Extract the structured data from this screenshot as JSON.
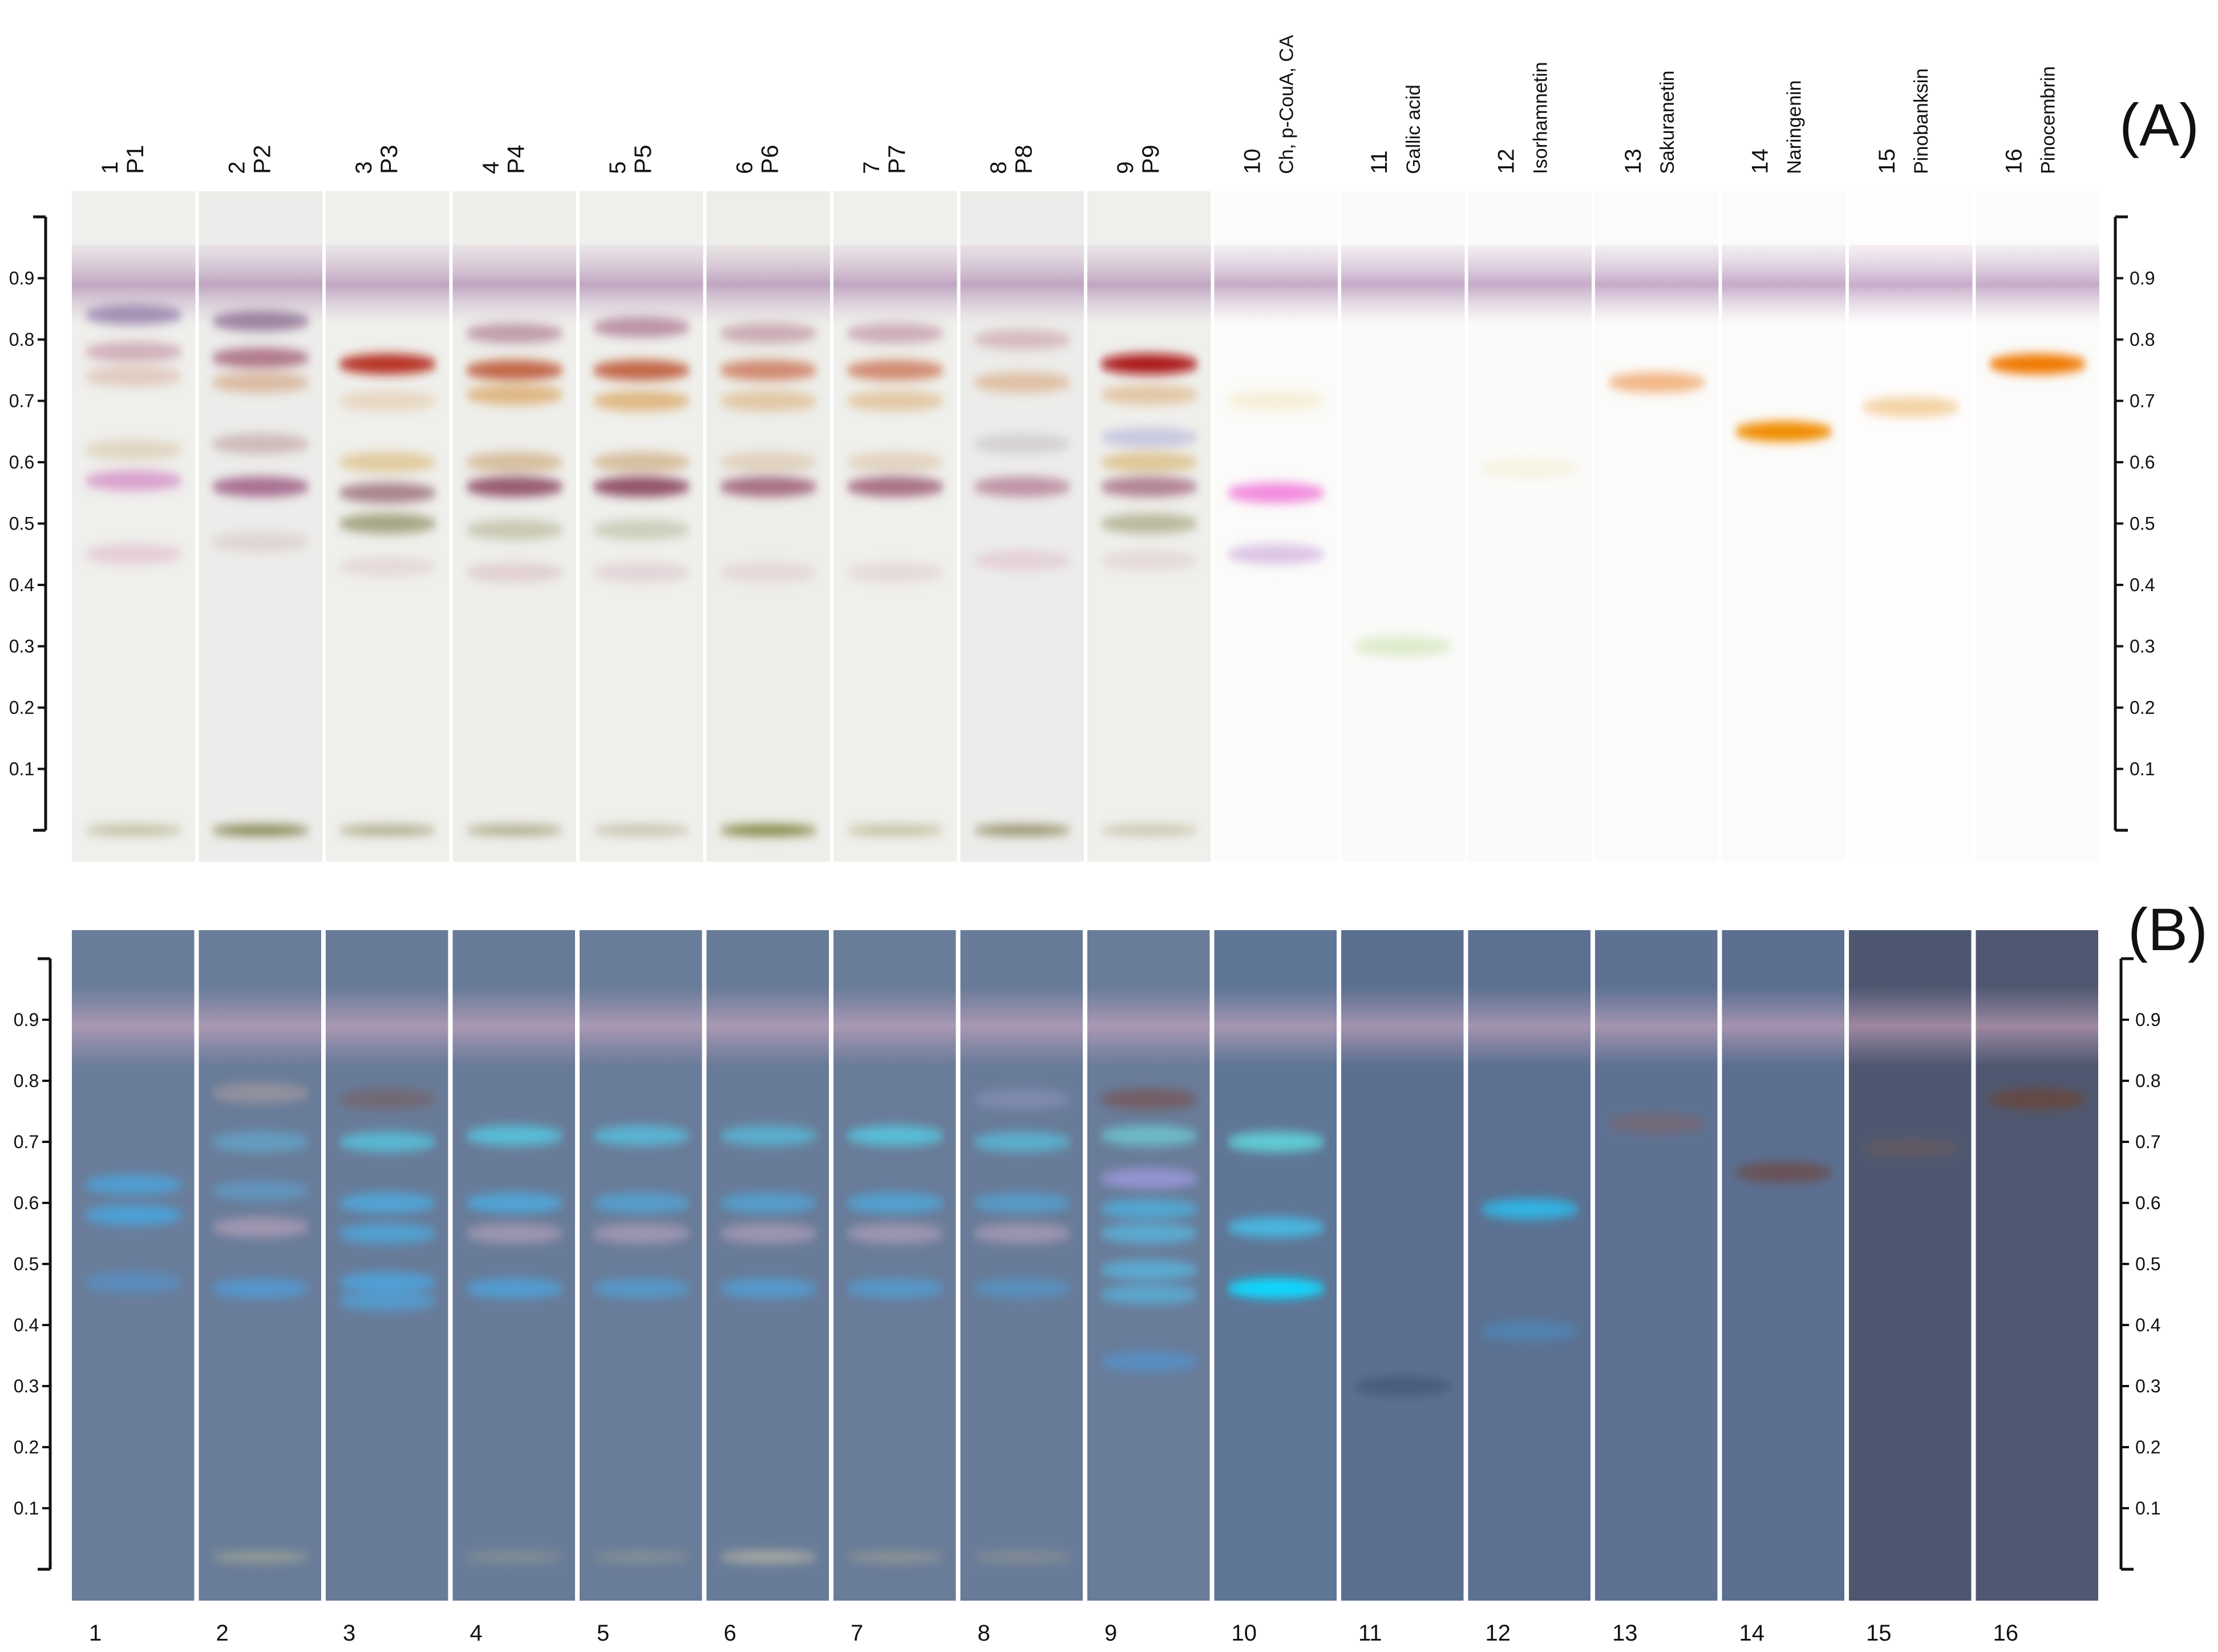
{
  "panels": [
    {
      "id": "A",
      "label": "(A)",
      "background": "#ffffff"
    },
    {
      "id": "B",
      "label": "(B)",
      "background": "#6b7f9d"
    }
  ],
  "axis_ticks": [
    "0.1",
    "0.2",
    "0.3",
    "0.4",
    "0.5",
    "0.6",
    "0.7",
    "0.8",
    "0.9"
  ],
  "tracks": [
    {
      "number": "1",
      "label": "P1",
      "bg": "#efefec",
      "bgB": "#6a7d9a"
    },
    {
      "number": "2",
      "label": "P2",
      "bg": "#ececea",
      "bgB": "#697c99"
    },
    {
      "number": "3",
      "label": "P3",
      "bg": "#efefec",
      "bgB": "#687b98"
    },
    {
      "number": "4",
      "label": "P4",
      "bg": "#eeeeeb",
      "bgB": "#687b98"
    },
    {
      "number": "5",
      "label": "P5",
      "bg": "#efefec",
      "bgB": "#697c99"
    },
    {
      "number": "6",
      "label": "P6",
      "bg": "#edede9",
      "bgB": "#687b98"
    },
    {
      "number": "7",
      "label": "P7",
      "bg": "#efefec",
      "bgB": "#697c99"
    },
    {
      "number": "8",
      "label": "P8",
      "bg": "#ececea",
      "bgB": "#687b98"
    },
    {
      "number": "9",
      "label": "P9",
      "bg": "#efefec",
      "bgB": "#697c99"
    },
    {
      "number": "10",
      "label": "Ch, p-CouA, CA",
      "bg": "#fbfbf9",
      "bgB": "#5f7696"
    },
    {
      "number": "11",
      "label": "Gallic acid",
      "bg": "#fafaf9",
      "bgB": "#5b7090"
    },
    {
      "number": "12",
      "label": "Isorhamnetin",
      "bg": "#fafaf9",
      "bgB": "#5c7191"
    },
    {
      "number": "13",
      "label": "Sakuranetin",
      "bg": "#fbfbfa",
      "bgB": "#5d7292"
    },
    {
      "number": "14",
      "label": "Naringenin",
      "bg": "#fbfbfa",
      "bgB": "#5b6f90"
    },
    {
      "number": "15",
      "label": "Pinobanksin",
      "bg": "#fefdfd",
      "bgB": "#4d5870"
    },
    {
      "number": "16",
      "label": "Pinocembrin",
      "bg": "#fbfbfa",
      "bgB": "#4f5870"
    }
  ],
  "bands_A": [
    [
      {
        "rf": 0.84,
        "c": "#6c4a8c",
        "o": 0.55
      },
      {
        "rf": 0.78,
        "c": "#9a3d5e",
        "o": 0.35
      },
      {
        "rf": 0.74,
        "c": "#c07a5a",
        "o": 0.3
      },
      {
        "rf": 0.62,
        "c": "#c09a60",
        "o": 0.3
      },
      {
        "rf": 0.57,
        "c": "#c860b4",
        "o": 0.55
      },
      {
        "rf": 0.45,
        "c": "#d090b0",
        "o": 0.35
      },
      {
        "rf": 0.0,
        "c": "#9a9a6a",
        "o": 0.55
      }
    ],
    [
      {
        "rf": 0.83,
        "c": "#6a3f70",
        "o": 0.6
      },
      {
        "rf": 0.77,
        "c": "#8a2c4c",
        "o": 0.6
      },
      {
        "rf": 0.73,
        "c": "#c0703a",
        "o": 0.4
      },
      {
        "rf": 0.63,
        "c": "#a07070",
        "o": 0.4
      },
      {
        "rf": 0.56,
        "c": "#8c3c6c",
        "o": 0.7
      },
      {
        "rf": 0.47,
        "c": "#c0a0a0",
        "o": 0.3
      },
      {
        "rf": 0.0,
        "c": "#6c6a2c",
        "o": 0.8
      }
    ],
    [
      {
        "rf": 0.76,
        "c": "#b01e0a",
        "o": 0.9
      },
      {
        "rf": 0.7,
        "c": "#d8a060",
        "o": 0.3
      },
      {
        "rf": 0.6,
        "c": "#d0a040",
        "o": 0.45
      },
      {
        "rf": 0.55,
        "c": "#7a3a50",
        "o": 0.6
      },
      {
        "rf": 0.5,
        "c": "#6a6a30",
        "o": 0.55
      },
      {
        "rf": 0.43,
        "c": "#d0a8a8",
        "o": 0.3
      },
      {
        "rf": 0.0,
        "c": "#8a8450",
        "o": 0.6
      }
    ],
    [
      {
        "rf": 0.81,
        "c": "#8a3a60",
        "o": 0.45
      },
      {
        "rf": 0.75,
        "c": "#b4380c",
        "o": 0.75
      },
      {
        "rf": 0.71,
        "c": "#d48a30",
        "o": 0.55
      },
      {
        "rf": 0.6,
        "c": "#c09050",
        "o": 0.5
      },
      {
        "rf": 0.56,
        "c": "#7a2a48",
        "o": 0.75
      },
      {
        "rf": 0.49,
        "c": "#909060",
        "o": 0.4
      },
      {
        "rf": 0.42,
        "c": "#c89aa8",
        "o": 0.35
      },
      {
        "rf": 0.0,
        "c": "#8a8450",
        "o": 0.6
      }
    ],
    [
      {
        "rf": 0.82,
        "c": "#8a3a60",
        "o": 0.5
      },
      {
        "rf": 0.75,
        "c": "#b4380c",
        "o": 0.75
      },
      {
        "rf": 0.7,
        "c": "#d48a30",
        "o": 0.55
      },
      {
        "rf": 0.6,
        "c": "#c09050",
        "o": 0.5
      },
      {
        "rf": 0.56,
        "c": "#7a2a48",
        "o": 0.8
      },
      {
        "rf": 0.49,
        "c": "#909060",
        "o": 0.35
      },
      {
        "rf": 0.42,
        "c": "#c89aa8",
        "o": 0.3
      },
      {
        "rf": 0.0,
        "c": "#a09a70",
        "o": 0.5
      }
    ],
    [
      {
        "rf": 0.81,
        "c": "#9a4a6a",
        "o": 0.4
      },
      {
        "rf": 0.75,
        "c": "#c04a1a",
        "o": 0.6
      },
      {
        "rf": 0.7,
        "c": "#d49a50",
        "o": 0.45
      },
      {
        "rf": 0.6,
        "c": "#c8a070",
        "o": 0.35
      },
      {
        "rf": 0.56,
        "c": "#8a3a58",
        "o": 0.7
      },
      {
        "rf": 0.42,
        "c": "#d0a8b0",
        "o": 0.3
      },
      {
        "rf": 0.0,
        "c": "#6a7020",
        "o": 0.85
      }
    ],
    [
      {
        "rf": 0.81,
        "c": "#9a4a6a",
        "o": 0.4
      },
      {
        "rf": 0.75,
        "c": "#c04a1a",
        "o": 0.6
      },
      {
        "rf": 0.7,
        "c": "#d49a50",
        "o": 0.45
      },
      {
        "rf": 0.6,
        "c": "#c8a070",
        "o": 0.35
      },
      {
        "rf": 0.56,
        "c": "#8a3a58",
        "o": 0.7
      },
      {
        "rf": 0.42,
        "c": "#d0a8b0",
        "o": 0.3
      },
      {
        "rf": 0.0,
        "c": "#a09a60",
        "o": 0.55
      }
    ],
    [
      {
        "rf": 0.8,
        "c": "#b06070",
        "o": 0.35
      },
      {
        "rf": 0.73,
        "c": "#d08a50",
        "o": 0.45
      },
      {
        "rf": 0.63,
        "c": "#a8a0b0",
        "o": 0.35
      },
      {
        "rf": 0.56,
        "c": "#9a4a70",
        "o": 0.55
      },
      {
        "rf": 0.44,
        "c": "#d8a0b8",
        "o": 0.35
      },
      {
        "rf": 0.0,
        "c": "#7a7440",
        "o": 0.75
      }
    ],
    [
      {
        "rf": 0.76,
        "c": "#a81008",
        "o": 0.95
      },
      {
        "rf": 0.71,
        "c": "#d8a060",
        "o": 0.5
      },
      {
        "rf": 0.64,
        "c": "#9a9ad0",
        "o": 0.45
      },
      {
        "rf": 0.6,
        "c": "#d0a040",
        "o": 0.5
      },
      {
        "rf": 0.56,
        "c": "#8a3a58",
        "o": 0.6
      },
      {
        "rf": 0.5,
        "c": "#7a7a40",
        "o": 0.45
      },
      {
        "rf": 0.44,
        "c": "#d0a8a8",
        "o": 0.3
      },
      {
        "rf": 0.0,
        "c": "#a8a070",
        "o": 0.5
      }
    ],
    [
      {
        "rf": 0.7,
        "c": "#f0d8a0",
        "o": 0.35
      },
      {
        "rf": 0.55,
        "c": "#f070d8",
        "o": 0.8
      },
      {
        "rf": 0.45,
        "c": "#c8a0d8",
        "o": 0.6
      }
    ],
    [
      {
        "rf": 0.3,
        "c": "#c8e0a8",
        "o": 0.55
      }
    ],
    [
      {
        "rf": 0.59,
        "c": "#f0e8b8",
        "o": 0.35
      }
    ],
    [
      {
        "rf": 0.73,
        "c": "#f0a060",
        "o": 0.75
      }
    ],
    [
      {
        "rf": 0.65,
        "c": "#f08c00",
        "o": 1.0
      }
    ],
    [
      {
        "rf": 0.69,
        "c": "#f0c080",
        "o": 0.7
      }
    ],
    [
      {
        "rf": 0.76,
        "c": "#f07800",
        "o": 1.0
      }
    ]
  ],
  "bands_B": [
    [
      {
        "rf": 0.63,
        "c": "#38b8ff",
        "o": 0.55
      },
      {
        "rf": 0.58,
        "c": "#38b8ff",
        "o": 0.6
      },
      {
        "rf": 0.47,
        "c": "#38a8ff",
        "o": 0.35
      }
    ],
    [
      {
        "rf": 0.78,
        "c": "#e0b8a8",
        "o": 0.35
      },
      {
        "rf": 0.7,
        "c": "#60c8f0",
        "o": 0.45
      },
      {
        "rf": 0.62,
        "c": "#5ab8f0",
        "o": 0.4
      },
      {
        "rf": 0.56,
        "c": "#d8b0c8",
        "o": 0.5
      },
      {
        "rf": 0.46,
        "c": "#40b0ff",
        "o": 0.5
      },
      {
        "rf": 0.02,
        "c": "#c8c890",
        "o": 0.45
      }
    ],
    [
      {
        "rf": 0.77,
        "c": "#7a5a58",
        "o": 0.55
      },
      {
        "rf": 0.7,
        "c": "#50e0f8",
        "o": 0.6
      },
      {
        "rf": 0.6,
        "c": "#40c0ff",
        "o": 0.6
      },
      {
        "rf": 0.55,
        "c": "#40c0ff",
        "o": 0.55
      },
      {
        "rf": 0.47,
        "c": "#40b8ff",
        "o": 0.6
      },
      {
        "rf": 0.44,
        "c": "#40b8ff",
        "o": 0.5
      }
    ],
    [
      {
        "rf": 0.71,
        "c": "#50e0f8",
        "o": 0.65
      },
      {
        "rf": 0.6,
        "c": "#40c0ff",
        "o": 0.6
      },
      {
        "rf": 0.55,
        "c": "#d0b0c8",
        "o": 0.5
      },
      {
        "rf": 0.46,
        "c": "#40b8ff",
        "o": 0.55
      },
      {
        "rf": 0.02,
        "c": "#b8b890",
        "o": 0.35
      }
    ],
    [
      {
        "rf": 0.71,
        "c": "#50d8f8",
        "o": 0.6
      },
      {
        "rf": 0.6,
        "c": "#40c0ff",
        "o": 0.5
      },
      {
        "rf": 0.55,
        "c": "#d0b0c8",
        "o": 0.5
      },
      {
        "rf": 0.46,
        "c": "#40b8ff",
        "o": 0.45
      },
      {
        "rf": 0.02,
        "c": "#b8b890",
        "o": 0.35
      }
    ],
    [
      {
        "rf": 0.71,
        "c": "#50d8f8",
        "o": 0.55
      },
      {
        "rf": 0.6,
        "c": "#40c0ff",
        "o": 0.5
      },
      {
        "rf": 0.55,
        "c": "#d0b0c8",
        "o": 0.5
      },
      {
        "rf": 0.46,
        "c": "#40b8ff",
        "o": 0.5
      },
      {
        "rf": 0.02,
        "c": "#d8d0a8",
        "o": 0.6
      }
    ],
    [
      {
        "rf": 0.71,
        "c": "#50e0f8",
        "o": 0.65
      },
      {
        "rf": 0.6,
        "c": "#40c0ff",
        "o": 0.55
      },
      {
        "rf": 0.55,
        "c": "#d0b0c8",
        "o": 0.5
      },
      {
        "rf": 0.46,
        "c": "#40b8ff",
        "o": 0.45
      },
      {
        "rf": 0.02,
        "c": "#c0b890",
        "o": 0.4
      }
    ],
    [
      {
        "rf": 0.77,
        "c": "#a8a8d8",
        "o": 0.35
      },
      {
        "rf": 0.7,
        "c": "#50d8f8",
        "o": 0.55
      },
      {
        "rf": 0.6,
        "c": "#40c0ff",
        "o": 0.45
      },
      {
        "rf": 0.55,
        "c": "#d0b0c8",
        "o": 0.5
      },
      {
        "rf": 0.46,
        "c": "#40b8ff",
        "o": 0.35
      },
      {
        "rf": 0.02,
        "c": "#b8b090",
        "o": 0.35
      }
    ],
    [
      {
        "rf": 0.77,
        "c": "#7a4a40",
        "o": 0.6
      },
      {
        "rf": 0.71,
        "c": "#70f0f0",
        "o": 0.55
      },
      {
        "rf": 0.64,
        "c": "#b8a8ff",
        "o": 0.55
      },
      {
        "rf": 0.59,
        "c": "#40c8ff",
        "o": 0.55
      },
      {
        "rf": 0.55,
        "c": "#50d0ff",
        "o": 0.55
      },
      {
        "rf": 0.49,
        "c": "#50d0ff",
        "o": 0.55
      },
      {
        "rf": 0.45,
        "c": "#50d0ff",
        "o": 0.5
      },
      {
        "rf": 0.34,
        "c": "#40a8ff",
        "o": 0.4
      }
    ],
    [
      {
        "rf": 0.7,
        "c": "#60f0f0",
        "o": 0.7
      },
      {
        "rf": 0.56,
        "c": "#40d0ff",
        "o": 0.7
      },
      {
        "rf": 0.46,
        "c": "#10d8ff",
        "o": 1.0
      }
    ],
    [
      {
        "rf": 0.3,
        "c": "#3a4a6a",
        "o": 0.55
      }
    ],
    [
      {
        "rf": 0.59,
        "c": "#20c8ff",
        "o": 0.75
      },
      {
        "rf": 0.39,
        "c": "#40a0e8",
        "o": 0.35
      }
    ],
    [
      {
        "rf": 0.73,
        "c": "#8a6060",
        "o": 0.5
      }
    ],
    [
      {
        "rf": 0.65,
        "c": "#6a4a48",
        "o": 0.8
      }
    ],
    [
      {
        "rf": 0.69,
        "c": "#7a5a58",
        "o": 0.45
      }
    ],
    [
      {
        "rf": 0.77,
        "c": "#6a4438",
        "o": 0.8
      }
    ]
  ]
}
